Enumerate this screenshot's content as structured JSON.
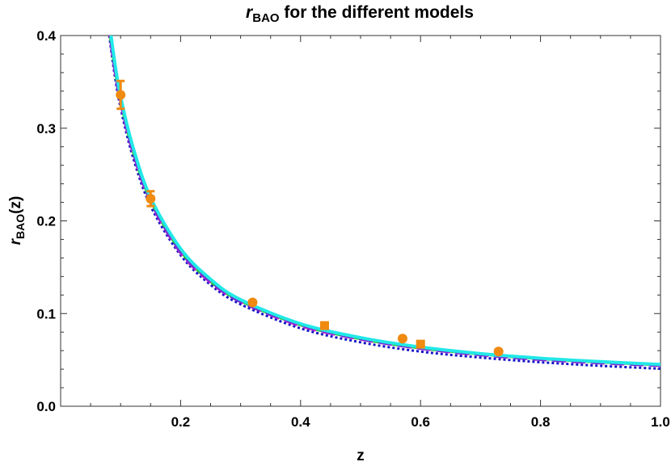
{
  "chart_data": {
    "type": "line",
    "title": {
      "main": "r",
      "sub": "BAO",
      "rest": " for the different models"
    },
    "xlabel": "z",
    "ylabel": {
      "main": "r",
      "sub": "BAO",
      "rest": "(z)"
    },
    "xlim": [
      0.0,
      1.0
    ],
    "ylim": [
      0.0,
      0.4
    ],
    "xticks": [
      0.2,
      0.4,
      0.6,
      0.8,
      1.0
    ],
    "xtick_labels": [
      "0.2",
      "0.4",
      "0.6",
      "0.8",
      "1.0"
    ],
    "yticks": [
      0.0,
      0.1,
      0.2,
      0.3,
      0.4
    ],
    "ytick_labels": [
      "0.0",
      "0.1",
      "0.2",
      "0.3",
      "0.4"
    ],
    "grid": false,
    "legend": "none",
    "series": [
      {
        "color": "#1414c8",
        "dash": "dotted",
        "x": [
          0.08,
          0.09,
          0.1,
          0.12,
          0.15,
          0.2,
          0.25,
          0.3,
          0.4,
          0.5,
          0.6,
          0.7,
          0.8,
          0.9,
          1.0
        ],
        "y": [
          0.405,
          0.358,
          0.322,
          0.27,
          0.216,
          0.163,
          0.131,
          0.11,
          0.084,
          0.069,
          0.059,
          0.0525,
          0.0475,
          0.0436,
          0.0405
        ]
      },
      {
        "color": "#22bb22",
        "dash": "solid",
        "x": [
          0.08,
          0.09,
          0.1,
          0.12,
          0.15,
          0.2,
          0.25,
          0.3,
          0.4,
          0.5,
          0.6,
          0.7,
          0.8,
          0.9,
          1.0
        ],
        "y": [
          0.415,
          0.368,
          0.331,
          0.278,
          0.223,
          0.168,
          0.135,
          0.114,
          0.088,
          0.073,
          0.063,
          0.0565,
          0.0515,
          0.0478,
          0.0448
        ]
      },
      {
        "color": "#cc22cc",
        "dash": "dashed",
        "x": [
          0.08,
          0.09,
          0.1,
          0.12,
          0.15,
          0.2,
          0.25,
          0.3,
          0.4,
          0.5,
          0.6,
          0.7,
          0.8,
          0.9,
          1.0
        ],
        "y": [
          0.412,
          0.365,
          0.329,
          0.276,
          0.221,
          0.166,
          0.134,
          0.113,
          0.087,
          0.0725,
          0.0625,
          0.0555,
          0.0505,
          0.0468,
          0.044
        ]
      },
      {
        "color": "#7030d0",
        "dash": "dashed",
        "x": [
          0.08,
          0.09,
          0.1,
          0.12,
          0.15,
          0.2,
          0.25,
          0.3,
          0.4,
          0.5,
          0.6,
          0.7,
          0.8,
          0.9,
          1.0
        ],
        "y": [
          0.414,
          0.367,
          0.33,
          0.277,
          0.222,
          0.167,
          0.135,
          0.113,
          0.088,
          0.0728,
          0.0628,
          0.0558,
          0.0508,
          0.0471,
          0.0443
        ]
      },
      {
        "color": "#22e8e8",
        "dash": "solid",
        "x": [
          0.08,
          0.09,
          0.1,
          0.12,
          0.15,
          0.2,
          0.25,
          0.3,
          0.4,
          0.5,
          0.6,
          0.7,
          0.8,
          0.9,
          1.0
        ],
        "y": [
          0.42,
          0.372,
          0.334,
          0.281,
          0.225,
          0.17,
          0.137,
          0.115,
          0.089,
          0.074,
          0.0638,
          0.0568,
          0.0518,
          0.0481,
          0.0451
        ]
      }
    ],
    "observations": [
      {
        "x": 0.1,
        "y": 0.336,
        "err": 0.015,
        "marker": "circle"
      },
      {
        "x": 0.15,
        "y": 0.224,
        "err": 0.008,
        "marker": "circle"
      },
      {
        "x": 0.32,
        "y": 0.112,
        "err": 0.002,
        "marker": "circle"
      },
      {
        "x": 0.44,
        "y": 0.087,
        "err": 0.003,
        "marker": "square"
      },
      {
        "x": 0.57,
        "y": 0.073,
        "err": 0.001,
        "marker": "circle"
      },
      {
        "x": 0.6,
        "y": 0.067,
        "err": 0.003,
        "marker": "square"
      },
      {
        "x": 0.73,
        "y": 0.059,
        "err": 0.002,
        "marker": "circle"
      }
    ],
    "observation_color": "#f08a10"
  }
}
